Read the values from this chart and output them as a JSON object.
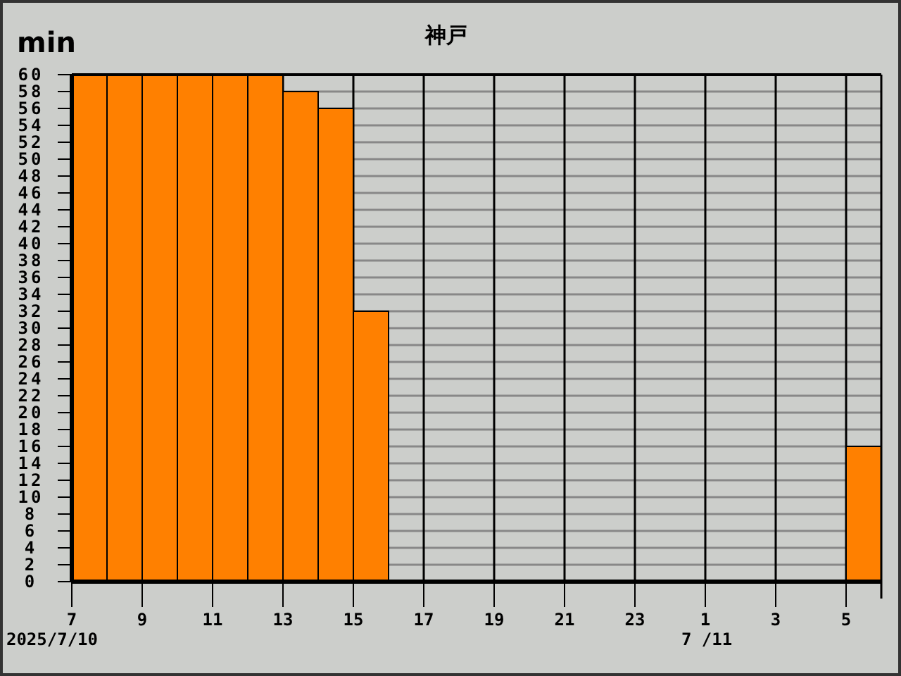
{
  "chart_data": {
    "type": "bar",
    "title": "神戸",
    "ylabel": "min",
    "x": [
      "2025-07-10T07:30",
      "2025-07-10T08:30",
      "2025-07-10T09:30",
      "2025-07-10T10:30",
      "2025-07-10T11:30",
      "2025-07-10T12:30",
      "2025-07-10T13:30",
      "2025-07-10T14:30",
      "2025-07-10T15:30",
      "2025-07-10T16:30",
      "2025-07-10T17:30",
      "2025-07-10T18:30",
      "2025-07-10T19:30",
      "2025-07-10T20:30",
      "2025-07-10T21:30",
      "2025-07-10T22:30",
      "2025-07-10T23:30",
      "2025-07-11T00:30",
      "2025-07-11T01:30",
      "2025-07-11T02:30",
      "2025-07-11T03:30",
      "2025-07-11T04:30",
      "2025-07-11T05:30"
    ],
    "values": [
      60,
      60,
      60,
      60,
      60,
      60,
      58,
      56,
      32,
      0,
      0,
      0,
      0,
      0,
      0,
      0,
      0,
      0,
      0,
      0,
      0,
      0,
      16
    ],
    "color": "#ff8000",
    "xlim": [
      "2025-07-10T07:00",
      "2025-07-11T06:00"
    ],
    "xticks": [
      {
        "value": "2025-07-10T07:00",
        "label": "7"
      },
      {
        "value": "2025-07-10T09:00",
        "label": "9"
      },
      {
        "value": "2025-07-10T11:00",
        "label": "11"
      },
      {
        "value": "2025-07-10T13:00",
        "label": "13"
      },
      {
        "value": "2025-07-10T15:00",
        "label": "15"
      },
      {
        "value": "2025-07-10T17:00",
        "label": "17"
      },
      {
        "value": "2025-07-10T19:00",
        "label": "19"
      },
      {
        "value": "2025-07-10T21:00",
        "label": "21"
      },
      {
        "value": "2025-07-10T23:00",
        "label": "23"
      },
      {
        "value": "2025-07-11T01:00",
        "label": "1"
      },
      {
        "value": "2025-07-11T03:00",
        "label": "3"
      },
      {
        "value": "2025-07-11T05:00",
        "label": "5"
      }
    ],
    "ylim": [
      0,
      60
    ],
    "yticks": [
      0,
      2,
      4,
      6,
      8,
      10,
      12,
      14,
      16,
      18,
      20,
      22,
      24,
      26,
      28,
      30,
      32,
      34,
      36,
      38,
      40,
      42,
      44,
      46,
      48,
      50,
      52,
      54,
      56,
      58,
      60
    ],
    "grid": true,
    "annotations": [
      "2025/7/10",
      "7 /11"
    ]
  }
}
